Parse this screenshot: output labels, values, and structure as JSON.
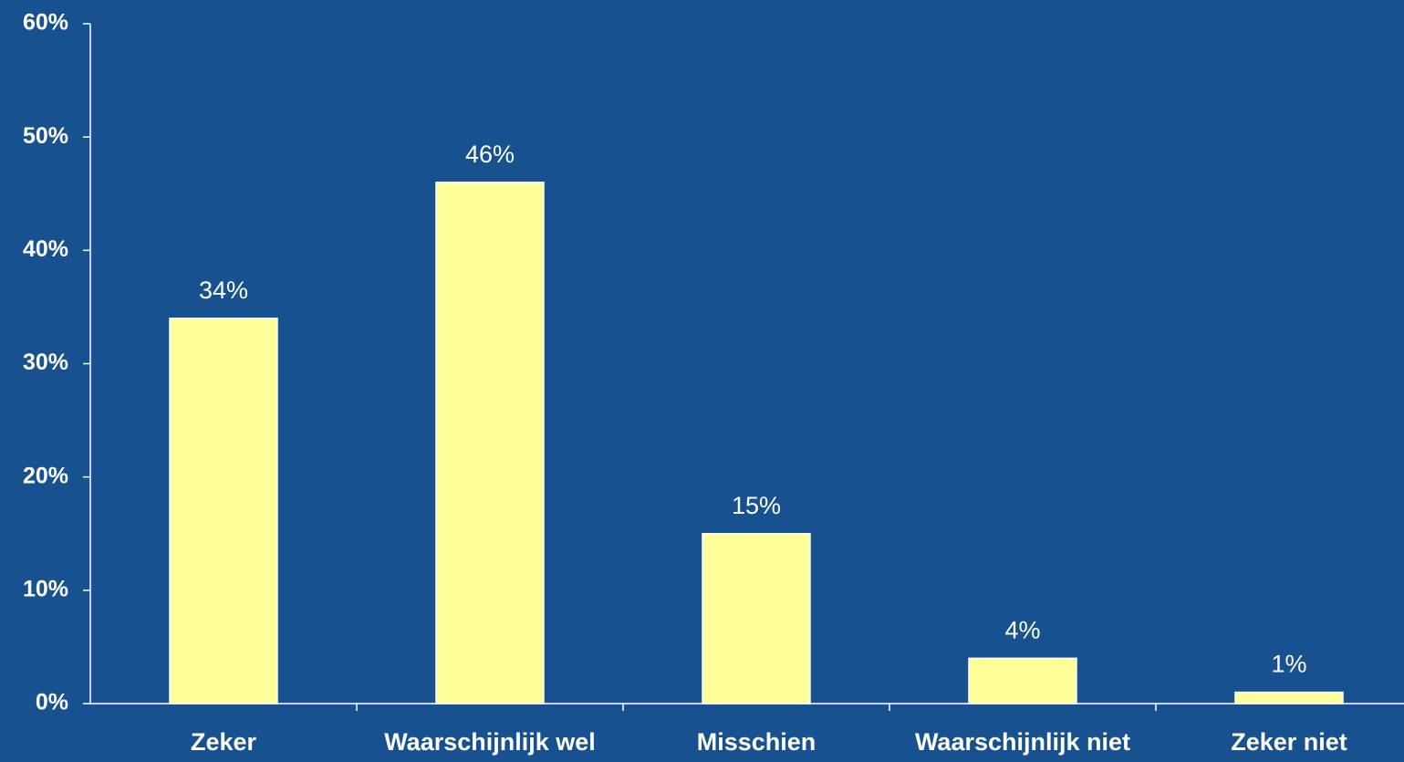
{
  "chart_data": {
    "type": "bar",
    "categories": [
      "Zeker",
      "Waarschijnlijk wel",
      "Misschien",
      "Waarschijnlijk niet",
      "Zeker niet"
    ],
    "values": [
      34,
      46,
      15,
      4,
      1
    ],
    "value_labels": [
      "34%",
      "46%",
      "15%",
      "4%",
      "1%"
    ],
    "color": "#ffff99",
    "ylim": [
      0,
      60
    ],
    "yticks": [
      {
        "value": 0,
        "label": "0%"
      },
      {
        "value": 10,
        "label": "10%"
      },
      {
        "value": 20,
        "label": "20%"
      },
      {
        "value": 30,
        "label": "30%"
      },
      {
        "value": 40,
        "label": "40%"
      },
      {
        "value": 50,
        "label": "50%"
      },
      {
        "value": 60,
        "label": "60%"
      }
    ]
  }
}
